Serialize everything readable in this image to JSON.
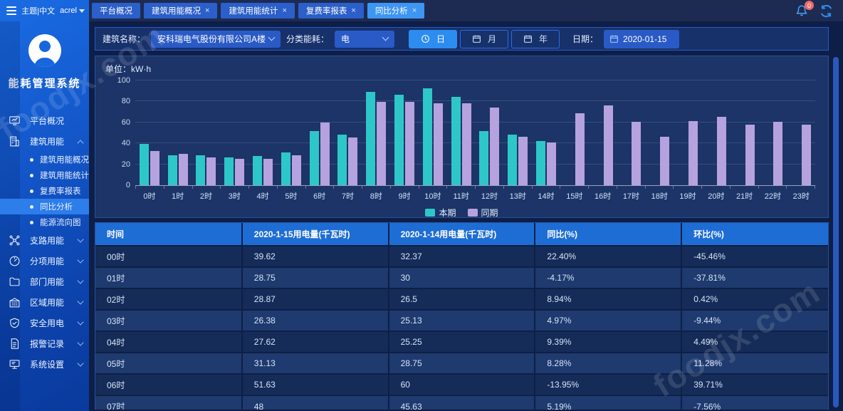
{
  "topbar": {
    "theme_text": "主题|中文",
    "user": "acrel",
    "notification_count": "0",
    "tabs": [
      {
        "label": "平台概况",
        "closable": false,
        "active": false
      },
      {
        "label": "建筑用能概况",
        "closable": true,
        "active": false
      },
      {
        "label": "建筑用能统计",
        "closable": true,
        "active": false
      },
      {
        "label": "复费率报表",
        "closable": true,
        "active": false
      },
      {
        "label": "同比分析",
        "closable": true,
        "active": true
      }
    ]
  },
  "sidebar": {
    "app_title": "能耗管理系统",
    "items": [
      {
        "label": "平台概况",
        "icon": "dashboard-icon",
        "has_children": false,
        "expanded": false,
        "children": []
      },
      {
        "label": "建筑用能",
        "icon": "building-icon",
        "has_children": true,
        "expanded": true,
        "children": [
          "建筑用能概况",
          "建筑用能统计",
          "复费率报表",
          "同比分析",
          "能源流向图"
        ],
        "active_child": "同比分析"
      },
      {
        "label": "支路用能",
        "icon": "branch-icon",
        "has_children": true,
        "expanded": false,
        "children": []
      },
      {
        "label": "分项用能",
        "icon": "gauge-icon",
        "has_children": true,
        "expanded": false,
        "children": []
      },
      {
        "label": "部门用能",
        "icon": "folder-icon",
        "has_children": true,
        "expanded": false,
        "children": []
      },
      {
        "label": "区域用能",
        "icon": "area-icon",
        "has_children": true,
        "expanded": false,
        "children": []
      },
      {
        "label": "安全用电",
        "icon": "shield-icon",
        "has_children": true,
        "expanded": false,
        "children": []
      },
      {
        "label": "报警记录",
        "icon": "report-icon",
        "has_children": true,
        "expanded": false,
        "children": []
      },
      {
        "label": "系统设置",
        "icon": "settings-icon",
        "has_children": true,
        "expanded": false,
        "children": []
      }
    ]
  },
  "filters": {
    "building_label": "建筑名称：",
    "building_value": "安科瑞电气股份有限公司A楼",
    "energy_label": "分类能耗：",
    "energy_value": "电",
    "range_buttons": [
      {
        "label": "日",
        "icon": "clock-icon",
        "active": true
      },
      {
        "label": "月",
        "icon": "calendar-icon",
        "active": false
      },
      {
        "label": "年",
        "icon": "calendar-icon",
        "active": false
      }
    ],
    "date_label": "日期：",
    "date_value": "2020-01-15"
  },
  "chart": {
    "unit_label": "单位：kW·h"
  },
  "chart_data": {
    "type": "bar",
    "title": "",
    "ylabel": "kW·h",
    "ylim": [
      0,
      100
    ],
    "yticks": [
      0,
      20,
      40,
      60,
      80,
      100
    ],
    "grid": true,
    "legend_position": "bottom",
    "categories": [
      "0时",
      "1时",
      "2时",
      "3时",
      "4时",
      "5时",
      "6时",
      "7时",
      "8时",
      "9时",
      "10时",
      "11时",
      "12时",
      "13时",
      "14时",
      "15时",
      "16时",
      "17时",
      "18时",
      "19时",
      "20时",
      "21时",
      "22时",
      "23时"
    ],
    "series": [
      {
        "name": "本期",
        "color": "#2ec7c9",
        "values": [
          39.62,
          28.75,
          28.87,
          26.38,
          27.62,
          31.13,
          51.63,
          48,
          89,
          86.5,
          92.5,
          84.5,
          52,
          48.3,
          42.5,
          null,
          null,
          null,
          null,
          null,
          null,
          null,
          null,
          null
        ]
      },
      {
        "name": "同期",
        "color": "#b6a2de",
        "values": [
          32.37,
          30,
          26.5,
          25.13,
          25.25,
          28.75,
          60,
          45.63,
          79.5,
          79.5,
          78.5,
          78.5,
          74.5,
          46,
          41,
          68.5,
          76,
          60.5,
          46,
          61.5,
          65,
          58,
          60.5,
          58
        ]
      }
    ]
  },
  "table": {
    "headers": [
      "时间",
      "2020-1-15用电量(千瓦时)",
      "2020-1-14用电量(千瓦时)",
      "同比(%)",
      "环比(%)"
    ],
    "rows": [
      [
        "00时",
        "39.62",
        "32.37",
        "22.40%",
        "-45.46%"
      ],
      [
        "01时",
        "28.75",
        "30",
        "-4.17%",
        "-37.81%"
      ],
      [
        "02时",
        "28.87",
        "26.5",
        "8.94%",
        "0.42%"
      ],
      [
        "03时",
        "26.38",
        "25.13",
        "4.97%",
        "-9.44%"
      ],
      [
        "04时",
        "27.62",
        "25.25",
        "9.39%",
        "4.49%"
      ],
      [
        "05时",
        "31.13",
        "28.75",
        "8.28%",
        "11.28%"
      ],
      [
        "06时",
        "51.63",
        "60",
        "-13.95%",
        "39.71%"
      ],
      [
        "07时",
        "48",
        "45.63",
        "5.19%",
        "-7.56%"
      ]
    ]
  },
  "watermark": {
    "text": "foodjx.com"
  }
}
